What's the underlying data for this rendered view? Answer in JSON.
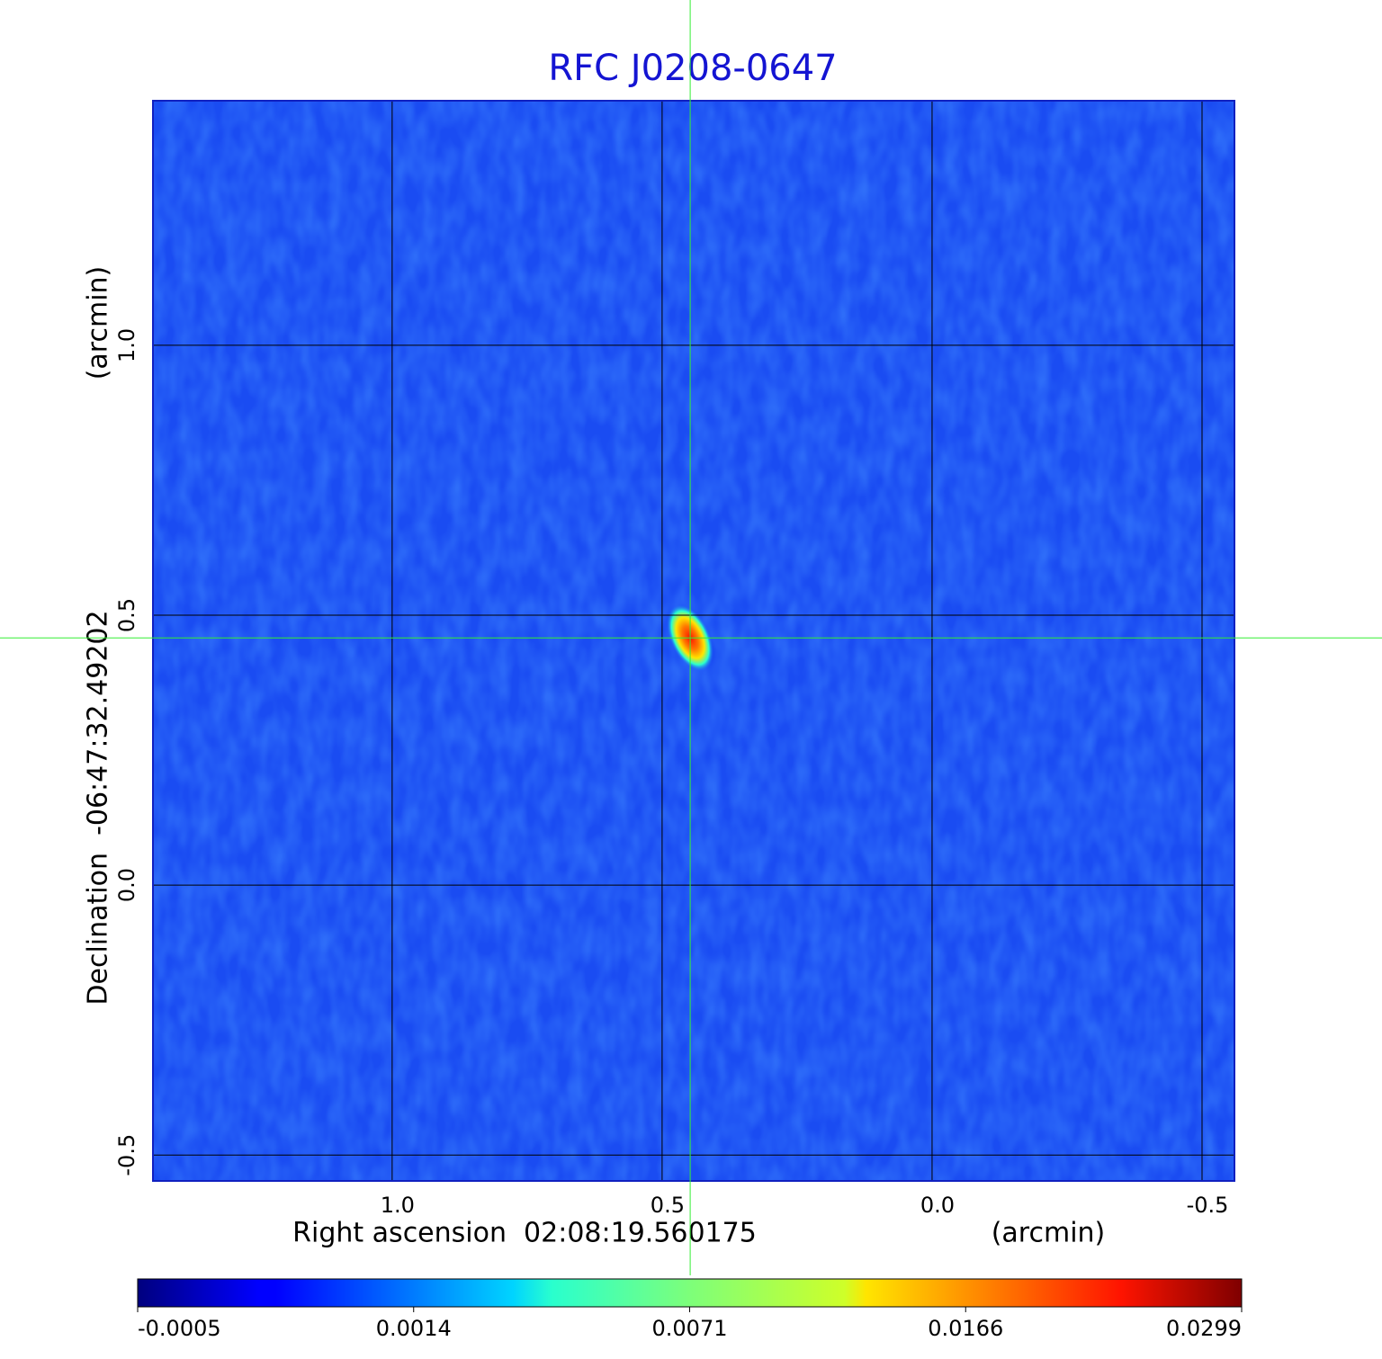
{
  "chart_data": {
    "type": "image",
    "title": "RFC J0208-0647",
    "xlabel": "Right ascension  02:08:19.560175",
    "xunit": "(arcmin)",
    "ylabel": "Declination  -06:47:32.49202",
    "yunit": "(arcmin)",
    "xlim": [
      1.443,
      -0.56
    ],
    "ylim": [
      -0.548,
      1.453
    ],
    "xticks": [
      {
        "value": 1,
        "label": "1.0"
      },
      0.5,
      {
        "value": 0,
        "label": "0.0"
      },
      -0.5
    ],
    "yticks": [
      -0.5,
      {
        "value": 0,
        "label": "0.0"
      },
      0.5,
      {
        "value": 1,
        "label": "1.0"
      }
    ],
    "grid": true,
    "colorbar": {
      "colormap": "jet",
      "scale": "sqrt",
      "clim": [
        -0.0005,
        0.0299
      ],
      "ticks": [
        -0.0005,
        0.0014,
        0.0071,
        0.0166,
        0.0299
      ]
    },
    "source": {
      "x": 0.448,
      "y": 0.458,
      "value": 0.0299
    }
  }
}
